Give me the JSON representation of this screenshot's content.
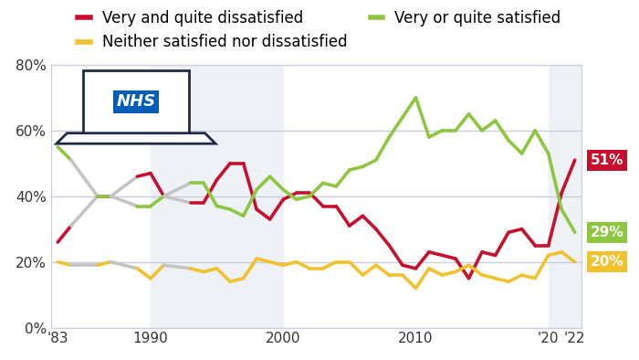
{
  "chart_data": {
    "type": "line",
    "x": [
      1983,
      1984,
      1986,
      1987,
      1989,
      1990,
      1991,
      1993,
      1994,
      1995,
      1996,
      1997,
      1998,
      1999,
      2000,
      2001,
      2002,
      2003,
      2004,
      2005,
      2006,
      2007,
      2008,
      2009,
      2010,
      2011,
      2012,
      2013,
      2014,
      2015,
      2016,
      2017,
      2018,
      2019,
      2020,
      2021,
      2022
    ],
    "series": [
      {
        "name": "Very and quite dissatisfied",
        "color": "#c8102e",
        "values": [
          26,
          31,
          40,
          40,
          46,
          47,
          40,
          38,
          38,
          45,
          50,
          50,
          36,
          33,
          39,
          41,
          41,
          37,
          37,
          31,
          34,
          30,
          25,
          19,
          18,
          23,
          22,
          21,
          15,
          23,
          22,
          29,
          30,
          25,
          25,
          41,
          51
        ]
      },
      {
        "name": "Neither satisfied nor dissatisfied",
        "color": "#f2c12e",
        "values": [
          20,
          19,
          19,
          20,
          18,
          15,
          19,
          18,
          17,
          18,
          14,
          15,
          21,
          20,
          19,
          20,
          18,
          18,
          20,
          20,
          16,
          19,
          16,
          16,
          12,
          18,
          16,
          17,
          19,
          16,
          15,
          14,
          16,
          15,
          22,
          23,
          20
        ]
      },
      {
        "name": "Very or quite satisfied",
        "color": "#8dc63f",
        "values": [
          55,
          51,
          40,
          40,
          37,
          37,
          40,
          44,
          44,
          37,
          36,
          34,
          42,
          46,
          42,
          39,
          40,
          44,
          43,
          48,
          49,
          51,
          58,
          64,
          70,
          58,
          60,
          60,
          65,
          60,
          63,
          57,
          53,
          60,
          53,
          36,
          29
        ]
      }
    ],
    "xlim": [
      1982.5,
      2022.5
    ],
    "xticks": [
      {
        "value": 1983,
        "label": "'83"
      },
      1990,
      2000,
      2010,
      {
        "value": 2020,
        "label": "'20"
      },
      {
        "value": 2022,
        "label": "'22"
      }
    ],
    "ylim": [
      0,
      80
    ],
    "yticks": [
      {
        "value": 0,
        "label": "0%"
      },
      {
        "value": 20,
        "label": "20%"
      },
      {
        "value": 40,
        "label": "40%"
      },
      {
        "value": 60,
        "label": "60%"
      },
      {
        "value": 80,
        "label": "80%"
      }
    ],
    "grid": true,
    "legend": "top",
    "annotations": [
      {
        "text": "NHS"
      },
      {
        "text": "51%",
        "x": 2022,
        "y": 51,
        "color": "#c8102e"
      },
      {
        "text": "29%",
        "x": 2022,
        "y": 29,
        "color": "#8dc63f"
      },
      {
        "text": "20%",
        "x": 2022,
        "y": 20,
        "color": "#f2c12e"
      }
    ]
  }
}
